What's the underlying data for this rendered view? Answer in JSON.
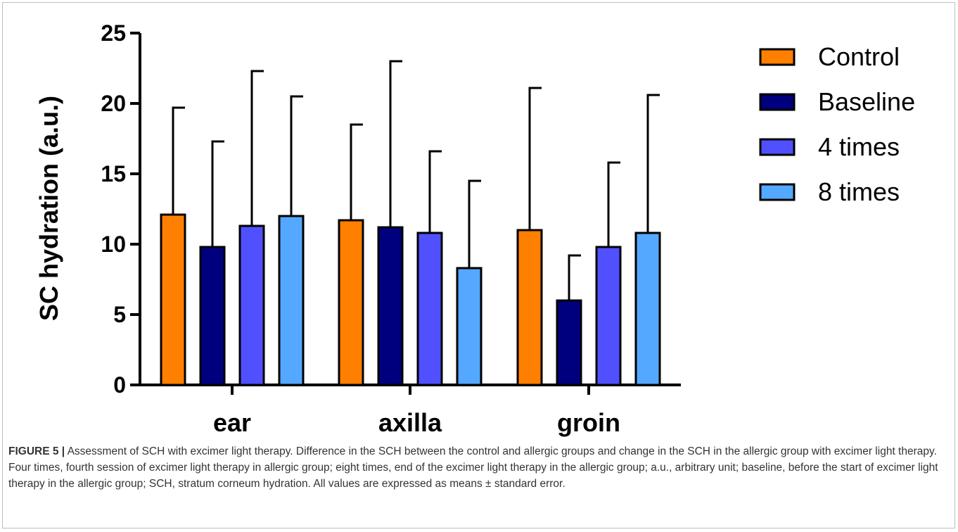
{
  "chart_data": {
    "type": "bar",
    "ylabel": "SC hydration  (a.u.)",
    "xlabel": "",
    "ylim": [
      0,
      25
    ],
    "yticks": [
      "0",
      "5",
      "10",
      "15",
      "20",
      "25"
    ],
    "categories": [
      "ear",
      "axilla",
      "groin"
    ],
    "legend_position": "top-right",
    "error_bars": true,
    "series": [
      {
        "name": "Control",
        "color": "#ff8000",
        "values": [
          12.1,
          11.7,
          11.0
        ],
        "errors": [
          7.6,
          6.8,
          10.1
        ]
      },
      {
        "name": "Baseline",
        "color": "#00007f",
        "values": [
          9.8,
          11.2,
          6.0
        ],
        "errors": [
          7.5,
          11.8,
          3.2
        ]
      },
      {
        "name": "4 times",
        "color": "#5050ff",
        "values": [
          11.3,
          10.8,
          9.8
        ],
        "errors": [
          11.0,
          5.8,
          6.0
        ]
      },
      {
        "name": "8 times",
        "color": "#55a8ff",
        "values": [
          12.0,
          8.3,
          10.8
        ],
        "errors": [
          8.5,
          6.2,
          9.8
        ]
      }
    ]
  },
  "caption": {
    "label": "FIGURE 5 |",
    "text": "Assessment of SCH with excimer light therapy. Difference in the SCH between the control and allergic groups and change in the SCH in the allergic group with excimer light therapy. Four times, fourth session of excimer light therapy in allergic group; eight times, end of the excimer light therapy in the allergic group; a.u., arbitrary unit; baseline, before the start of excimer light therapy in the allergic group; SCH, stratum corneum hydration. All values are expressed as means ± standard error."
  }
}
